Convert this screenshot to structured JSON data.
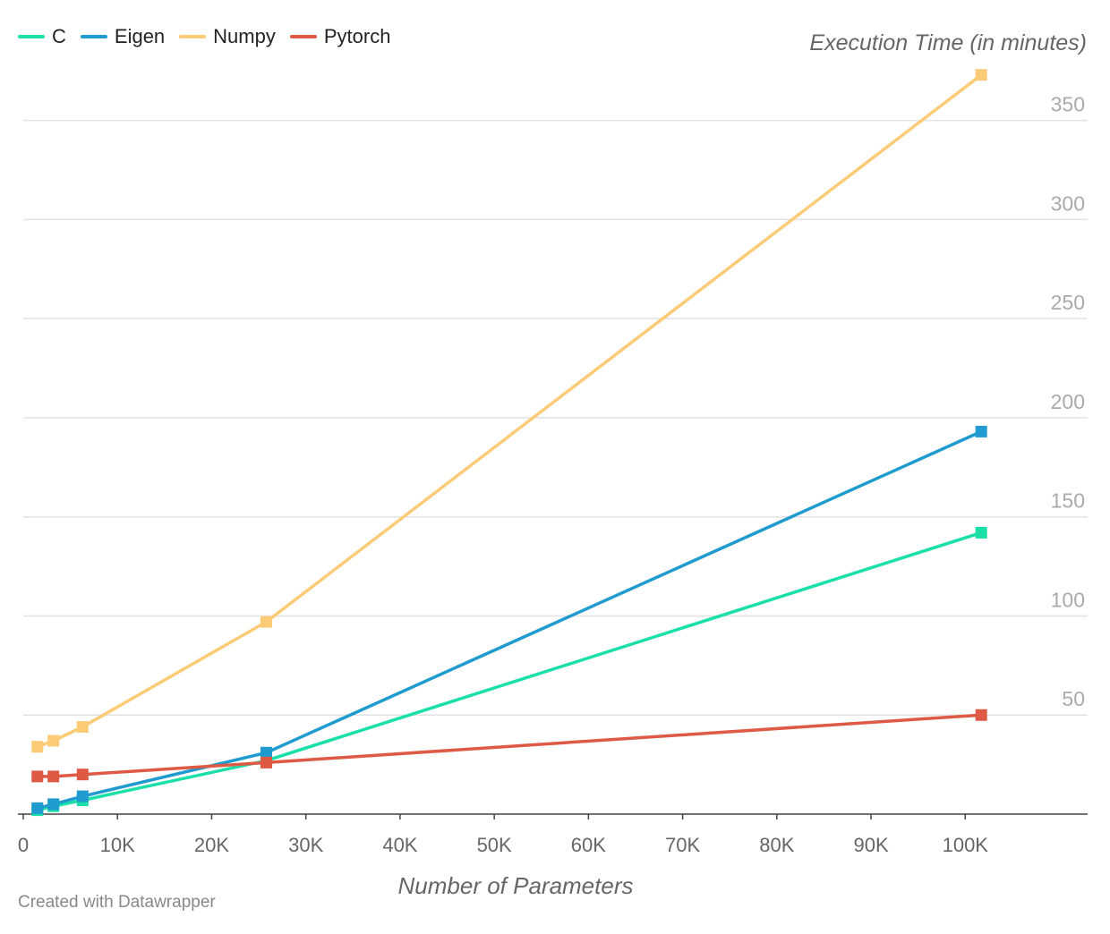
{
  "chart_data": {
    "type": "line",
    "title": "",
    "xlabel": "Number of Parameters",
    "ylabel": "Execution Time (in minutes)",
    "xlim": [
      0,
      105000
    ],
    "ylim": [
      0,
      375
    ],
    "x_ticks": [
      0,
      10000,
      20000,
      30000,
      40000,
      50000,
      60000,
      70000,
      80000,
      90000,
      100000
    ],
    "x_tick_labels": [
      "0",
      "10K",
      "20K",
      "30K",
      "40K",
      "50K",
      "60K",
      "70K",
      "80K",
      "90K",
      "100K"
    ],
    "y_ticks": [
      50,
      100,
      150,
      200,
      250,
      300,
      350
    ],
    "y_tick_labels": [
      "50",
      "100",
      "150",
      "200",
      "250",
      "300",
      "350"
    ],
    "grid": true,
    "legend_position": "top-left",
    "series": [
      {
        "name": "C",
        "color": "#1adfa8",
        "x": [
          1500,
          3200,
          6300,
          25800,
          101700
        ],
        "y": [
          2,
          4,
          7,
          27,
          142
        ]
      },
      {
        "name": "Eigen",
        "color": "#1f9bcf",
        "x": [
          1500,
          3200,
          6300,
          25800,
          101700
        ],
        "y": [
          3,
          5,
          9,
          31,
          193
        ]
      },
      {
        "name": "Numpy",
        "color": "#fbcb77",
        "x": [
          1500,
          3200,
          6300,
          25800,
          101700
        ],
        "y": [
          34,
          37,
          44,
          97,
          373
        ]
      },
      {
        "name": "Pytorch",
        "color": "#de5a45",
        "x": [
          1500,
          3200,
          6300,
          25800,
          101700
        ],
        "y": [
          19,
          19,
          20,
          26,
          50
        ]
      }
    ]
  },
  "footer": {
    "credit": "Created with Datawrapper"
  }
}
